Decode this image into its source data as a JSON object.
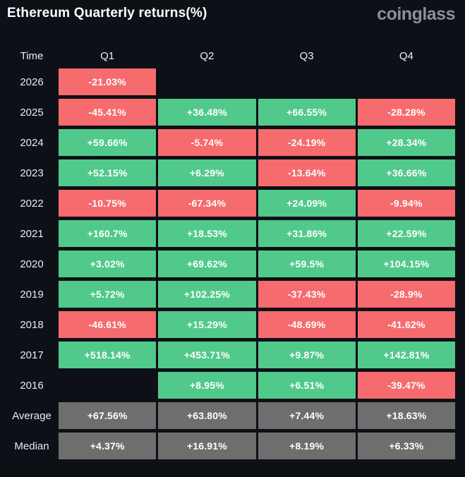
{
  "header": {
    "title": "Ethereum Quarterly returns(%)",
    "logo": "coinglass"
  },
  "table": {
    "columns": [
      "Time",
      "Q1",
      "Q2",
      "Q3",
      "Q4"
    ],
    "rows": [
      {
        "label": "2026",
        "cells": [
          {
            "text": "-21.03%",
            "type": "negative"
          },
          {
            "text": "",
            "type": "empty"
          },
          {
            "text": "",
            "type": "empty"
          },
          {
            "text": "",
            "type": "empty"
          }
        ]
      },
      {
        "label": "2025",
        "cells": [
          {
            "text": "-45.41%",
            "type": "negative"
          },
          {
            "text": "+36.48%",
            "type": "positive"
          },
          {
            "text": "+66.55%",
            "type": "positive"
          },
          {
            "text": "-28.28%",
            "type": "negative"
          }
        ]
      },
      {
        "label": "2024",
        "cells": [
          {
            "text": "+59.66%",
            "type": "positive"
          },
          {
            "text": "-5.74%",
            "type": "negative"
          },
          {
            "text": "-24.19%",
            "type": "negative"
          },
          {
            "text": "+28.34%",
            "type": "positive"
          }
        ]
      },
      {
        "label": "2023",
        "cells": [
          {
            "text": "+52.15%",
            "type": "positive"
          },
          {
            "text": "+6.29%",
            "type": "positive"
          },
          {
            "text": "-13.64%",
            "type": "negative"
          },
          {
            "text": "+36.66%",
            "type": "positive"
          }
        ]
      },
      {
        "label": "2022",
        "cells": [
          {
            "text": "-10.75%",
            "type": "negative"
          },
          {
            "text": "-67.34%",
            "type": "negative"
          },
          {
            "text": "+24.09%",
            "type": "positive"
          },
          {
            "text": "-9.94%",
            "type": "negative"
          }
        ]
      },
      {
        "label": "2021",
        "cells": [
          {
            "text": "+160.7%",
            "type": "positive"
          },
          {
            "text": "+18.53%",
            "type": "positive"
          },
          {
            "text": "+31.86%",
            "type": "positive"
          },
          {
            "text": "+22.59%",
            "type": "positive"
          }
        ]
      },
      {
        "label": "2020",
        "cells": [
          {
            "text": "+3.02%",
            "type": "positive"
          },
          {
            "text": "+69.62%",
            "type": "positive"
          },
          {
            "text": "+59.5%",
            "type": "positive"
          },
          {
            "text": "+104.15%",
            "type": "positive"
          }
        ]
      },
      {
        "label": "2019",
        "cells": [
          {
            "text": "+5.72%",
            "type": "positive"
          },
          {
            "text": "+102.25%",
            "type": "positive"
          },
          {
            "text": "-37.43%",
            "type": "negative"
          },
          {
            "text": "-28.9%",
            "type": "negative"
          }
        ]
      },
      {
        "label": "2018",
        "cells": [
          {
            "text": "-46.61%",
            "type": "negative"
          },
          {
            "text": "+15.29%",
            "type": "positive"
          },
          {
            "text": "-48.69%",
            "type": "negative"
          },
          {
            "text": "-41.62%",
            "type": "negative"
          }
        ]
      },
      {
        "label": "2017",
        "cells": [
          {
            "text": "+518.14%",
            "type": "positive"
          },
          {
            "text": "+453.71%",
            "type": "positive"
          },
          {
            "text": "+9.87%",
            "type": "positive"
          },
          {
            "text": "+142.81%",
            "type": "positive"
          }
        ]
      },
      {
        "label": "2016",
        "cells": [
          {
            "text": "",
            "type": "empty"
          },
          {
            "text": "+8.95%",
            "type": "positive"
          },
          {
            "text": "+6.51%",
            "type": "positive"
          },
          {
            "text": "-39.47%",
            "type": "negative"
          }
        ]
      },
      {
        "label": "Average",
        "cells": [
          {
            "text": "+67.56%",
            "type": "neutral"
          },
          {
            "text": "+63.80%",
            "type": "neutral"
          },
          {
            "text": "+7.44%",
            "type": "neutral"
          },
          {
            "text": "+18.63%",
            "type": "neutral"
          }
        ]
      },
      {
        "label": "Median",
        "cells": [
          {
            "text": "+4.37%",
            "type": "neutral"
          },
          {
            "text": "+16.91%",
            "type": "neutral"
          },
          {
            "text": "+8.19%",
            "type": "neutral"
          },
          {
            "text": "+6.33%",
            "type": "neutral"
          }
        ]
      }
    ]
  },
  "colors": {
    "background": "#0d1016",
    "positive": "#51c98a",
    "negative": "#f56b6e",
    "neutral": "#6e6e6e",
    "logo_gray": "#8a8f99"
  },
  "chart_data": {
    "type": "table",
    "title": "Ethereum Quarterly returns(%)",
    "row_labels": [
      "2026",
      "2025",
      "2024",
      "2023",
      "2022",
      "2021",
      "2020",
      "2019",
      "2018",
      "2017",
      "2016",
      "Average",
      "Median"
    ],
    "columns": [
      "Q1",
      "Q2",
      "Q3",
      "Q4"
    ],
    "values_pct": [
      [
        -21.03,
        null,
        null,
        null
      ],
      [
        -45.41,
        36.48,
        66.55,
        -28.28
      ],
      [
        59.66,
        -5.74,
        -24.19,
        28.34
      ],
      [
        52.15,
        6.29,
        -13.64,
        36.66
      ],
      [
        -10.75,
        -67.34,
        24.09,
        -9.94
      ],
      [
        160.7,
        18.53,
        31.86,
        22.59
      ],
      [
        3.02,
        69.62,
        59.5,
        104.15
      ],
      [
        5.72,
        102.25,
        -37.43,
        -28.9
      ],
      [
        -46.61,
        15.29,
        -48.69,
        -41.62
      ],
      [
        518.14,
        453.71,
        9.87,
        142.81
      ],
      [
        null,
        8.95,
        6.51,
        -39.47
      ],
      [
        67.56,
        63.8,
        7.44,
        18.63
      ],
      [
        4.37,
        16.91,
        8.19,
        6.33
      ]
    ],
    "legend": "green = positive return, red = negative return, gray = aggregate rows"
  }
}
